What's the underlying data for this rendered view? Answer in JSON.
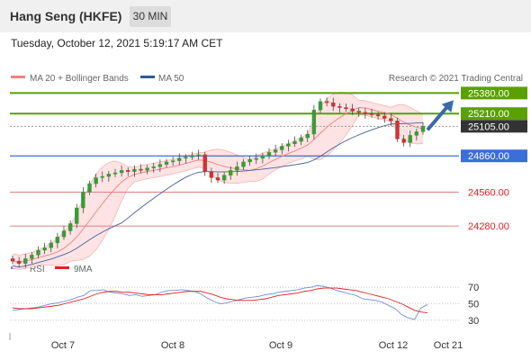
{
  "header": {
    "title": "Hang Seng (HKFE)",
    "interval": "30 MIN"
  },
  "timestamp": "Tuesday, October 12, 2021 5:19:17 AM CET",
  "legend": {
    "bollinger_label": "MA 20 + Bollinger Bands",
    "ma50_label": "MA 50",
    "copyright": "Research © 2021 Trading Central",
    "rsi_label": "RSI",
    "rsi_ma_label": "9MA"
  },
  "colors": {
    "resistance": "#5aa000",
    "pivot": "#3a6ed8",
    "support": "#e08080",
    "current": "#333333",
    "bollinger_line": "#f08080",
    "bollinger_fill": "#fde3e3",
    "ma50": "#4a5fa0",
    "candle_up": "#3a9a3a",
    "candle_down": "#cc3333",
    "rsi": "#6f8fd8",
    "rsi_ma": "#dd2222",
    "arrow": "#3a6aa8"
  },
  "chart_data": [
    {
      "type": "candlestick",
      "title": "Hang Seng (HKFE)",
      "interval": "30 MIN",
      "x_tick_labels": [
        "Oct 7",
        "Oct 8",
        "Oct 9",
        "Oct 12",
        "Oct 21"
      ],
      "y_tick_labels": [
        "25380.00",
        "25210.00",
        "25105.00",
        "24860.00",
        "24560.00",
        "24280.00"
      ],
      "ylim": [
        24080,
        25420
      ],
      "levels": [
        {
          "value": 25380,
          "label": "25380.00",
          "kind": "resistance"
        },
        {
          "value": 25210,
          "label": "25210.00",
          "kind": "resistance"
        },
        {
          "value": 25105,
          "label": "25105.00",
          "kind": "current"
        },
        {
          "value": 24860,
          "label": "24860.00",
          "kind": "pivot"
        },
        {
          "value": 24560,
          "label": "24560.00",
          "kind": "support"
        },
        {
          "value": 24280,
          "label": "24280.00",
          "kind": "support"
        }
      ],
      "close": [
        23990,
        23970,
        24010,
        24040,
        24080,
        24100,
        24140,
        24190,
        24240,
        24300,
        24430,
        24560,
        24630,
        24680,
        24690,
        24710,
        24720,
        24740,
        24730,
        24750,
        24740,
        24760,
        24770,
        24790,
        24810,
        24820,
        24840,
        24850,
        24860,
        24870,
        24730,
        24680,
        24660,
        24700,
        24740,
        24770,
        24810,
        24830,
        24840,
        24860,
        24890,
        24910,
        24940,
        24960,
        24980,
        25010,
        25040,
        25240,
        25310,
        25300,
        25270,
        25260,
        25250,
        25230,
        25220,
        25210,
        25200,
        25190,
        25170,
        25150,
        25000,
        24970,
        25030,
        25060,
        25105
      ],
      "indicators": [
        "MA 20 + Bollinger Bands",
        "MA 50"
      ],
      "forecast": {
        "from": 25105,
        "to": 25380
      }
    },
    {
      "type": "line",
      "title": "RSI",
      "series": [
        {
          "name": "RSI",
          "values": [
            42,
            43,
            44,
            45,
            46,
            48,
            50,
            51,
            53,
            55,
            58,
            60,
            66,
            66,
            67,
            64,
            63,
            62,
            60,
            61,
            59,
            60,
            61,
            64,
            66,
            66,
            67,
            66,
            65,
            62,
            57,
            53,
            50,
            51,
            53,
            55,
            57,
            58,
            59,
            61,
            62,
            64,
            65,
            66,
            67,
            69,
            70,
            72,
            71,
            69,
            66,
            64,
            62,
            60,
            56,
            55,
            54,
            52,
            48,
            44,
            37,
            33,
            31,
            45,
            49
          ]
        },
        {
          "name": "9MA",
          "values": [
            45,
            44,
            44,
            44,
            45,
            46,
            47,
            48,
            50,
            52,
            54,
            56,
            59,
            62,
            64,
            65,
            65,
            64,
            64,
            63,
            62,
            61,
            61,
            61,
            62,
            63,
            64,
            65,
            65,
            65,
            63,
            61,
            58,
            56,
            55,
            54,
            54,
            54,
            55,
            56,
            58,
            60,
            61,
            62,
            63,
            65,
            66,
            68,
            69,
            69,
            69,
            68,
            67,
            66,
            64,
            62,
            60,
            58,
            56,
            53,
            50,
            46,
            42,
            40,
            39
          ]
        }
      ],
      "y_tick_labels": [
        "70",
        "50",
        "30"
      ],
      "ylim": [
        20,
        80
      ]
    }
  ]
}
